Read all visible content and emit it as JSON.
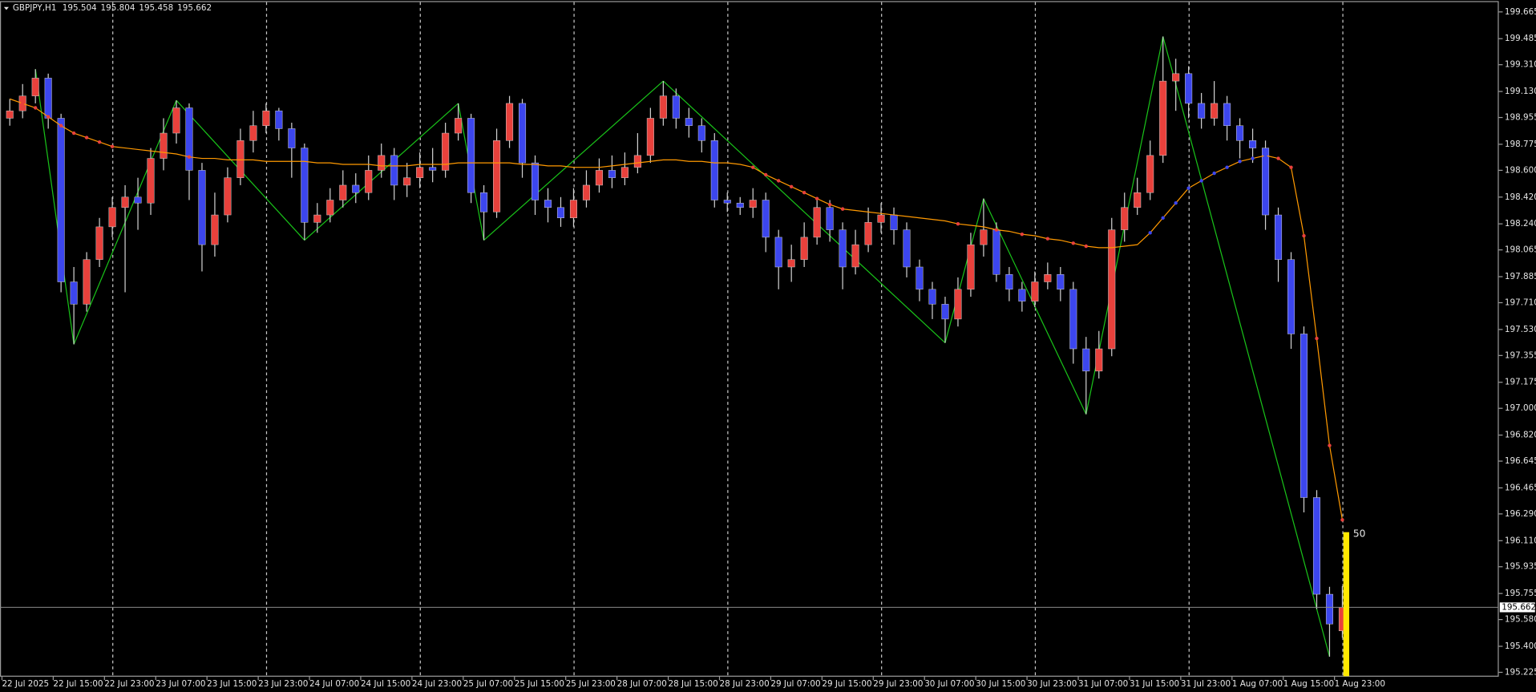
{
  "chart_data": {
    "type": "candlestick",
    "title": "GBPJPY,H1",
    "categories": [
      "22 Jul 2025",
      null,
      null,
      null,
      "22 Jul 15:00",
      null,
      null,
      null,
      "22 Jul 23:00",
      null,
      null,
      null,
      "23 Jul 07:00",
      null,
      null,
      null,
      "23 Jul 15:00",
      null,
      null,
      null,
      "23 Jul 23:00",
      null,
      null,
      null,
      "24 Jul 07:00",
      null,
      null,
      null,
      "24 Jul 15:00",
      null,
      null,
      null,
      "24 Jul 23:00",
      null,
      null,
      null,
      "25 Jul 07:00",
      null,
      null,
      null,
      "25 Jul 15:00",
      null,
      null,
      null,
      "25 Jul 23:00",
      null,
      null,
      null,
      "28 Jul 07:00",
      null,
      null,
      null,
      "28 Jul 15:00",
      null,
      null,
      null,
      "28 Jul 23:00",
      null,
      null,
      null,
      "29 Jul 07:00",
      null,
      null,
      null,
      "29 Jul 15:00",
      null,
      null,
      null,
      "29 Jul 23:00",
      null,
      null,
      null,
      "30 Jul 07:00",
      null,
      null,
      null,
      "30 Jul 15:00",
      null,
      null,
      null,
      "30 Jul 23:00",
      null,
      null,
      null,
      "31 Jul 07:00",
      null,
      null,
      null,
      "31 Jul 15:00",
      null,
      null,
      null,
      "31 Jul 23:00",
      null,
      null,
      null,
      "1 Aug 07:00",
      null,
      null,
      null,
      "1 Aug 15:00",
      null,
      null,
      null,
      "1 Aug 23:00"
    ],
    "open": [
      198.95,
      199.0,
      199.1,
      199.22,
      198.95,
      197.85,
      197.7,
      198.0,
      198.22,
      198.35,
      198.42,
      198.38,
      198.68,
      198.85,
      199.02,
      198.6,
      198.1,
      198.3,
      198.55,
      198.8,
      198.9,
      199.0,
      198.88,
      198.75,
      198.25,
      198.3,
      198.4,
      198.5,
      198.45,
      198.6,
      198.7,
      198.5,
      198.55,
      198.62,
      198.6,
      198.85,
      198.95,
      198.45,
      198.32,
      198.8,
      199.05,
      198.65,
      198.4,
      198.35,
      198.28,
      198.4,
      198.5,
      198.6,
      198.55,
      198.62,
      198.7,
      198.95,
      199.1,
      198.95,
      198.9,
      198.8,
      198.4,
      198.38,
      198.35,
      198.4,
      198.15,
      197.95,
      198.0,
      198.15,
      198.35,
      198.2,
      197.95,
      198.1,
      198.25,
      198.3,
      198.2,
      197.95,
      197.8,
      197.7,
      197.6,
      197.8,
      198.1,
      198.2,
      197.9,
      197.8,
      197.72,
      197.85,
      197.9,
      197.8,
      197.4,
      197.25,
      197.4,
      198.2,
      198.35,
      198.45,
      198.7,
      199.2,
      199.25,
      199.05,
      198.95,
      199.05,
      198.9,
      198.8,
      198.75,
      198.3,
      198.0,
      197.5,
      196.4,
      195.75,
      195.504
    ],
    "high": [
      199.08,
      199.18,
      199.28,
      199.25,
      198.98,
      197.95,
      198.05,
      198.28,
      198.42,
      198.5,
      198.55,
      198.75,
      198.95,
      199.07,
      199.05,
      198.65,
      198.45,
      198.62,
      198.88,
      199.0,
      199.05,
      199.02,
      198.92,
      198.78,
      198.38,
      198.48,
      198.6,
      198.58,
      198.7,
      198.78,
      198.75,
      198.65,
      198.72,
      198.75,
      198.92,
      199.05,
      198.98,
      198.5,
      198.88,
      199.1,
      199.08,
      198.7,
      198.48,
      198.42,
      198.48,
      198.6,
      198.68,
      198.7,
      198.72,
      198.85,
      199.02,
      199.2,
      199.15,
      199.02,
      198.95,
      198.85,
      198.45,
      198.42,
      198.48,
      198.45,
      198.2,
      198.1,
      198.25,
      198.42,
      198.4,
      198.25,
      198.2,
      198.35,
      198.38,
      198.35,
      198.25,
      198.0,
      197.85,
      197.75,
      197.88,
      198.18,
      198.41,
      198.25,
      197.95,
      197.85,
      197.92,
      197.98,
      197.95,
      197.85,
      197.48,
      197.52,
      198.28,
      198.45,
      198.55,
      198.8,
      199.5,
      199.35,
      199.3,
      199.12,
      199.2,
      199.1,
      198.95,
      198.88,
      198.8,
      198.35,
      198.05,
      197.55,
      196.45,
      195.8,
      195.804
    ],
    "low": [
      198.9,
      198.95,
      199.05,
      198.88,
      197.78,
      197.43,
      197.65,
      197.95,
      198.15,
      197.78,
      198.2,
      198.3,
      198.6,
      198.78,
      198.4,
      197.92,
      198.02,
      198.25,
      198.5,
      198.72,
      198.85,
      198.8,
      198.55,
      198.13,
      198.18,
      198.25,
      198.35,
      198.38,
      198.4,
      198.55,
      198.4,
      198.42,
      198.48,
      198.52,
      198.55,
      198.8,
      198.38,
      198.13,
      198.28,
      198.75,
      198.55,
      198.3,
      198.25,
      198.22,
      198.22,
      198.35,
      198.45,
      198.48,
      198.5,
      198.58,
      198.65,
      198.9,
      198.88,
      198.82,
      198.72,
      198.35,
      198.32,
      198.3,
      198.28,
      198.05,
      197.8,
      197.85,
      197.95,
      198.1,
      198.12,
      197.8,
      197.9,
      198.05,
      198.18,
      198.1,
      197.88,
      197.72,
      197.6,
      197.44,
      197.55,
      197.75,
      198.02,
      197.85,
      197.72,
      197.65,
      197.68,
      197.8,
      197.72,
      197.3,
      196.96,
      197.2,
      197.35,
      198.12,
      198.3,
      198.4,
      198.65,
      199.0,
      198.95,
      198.88,
      198.9,
      198.8,
      198.68,
      198.65,
      198.2,
      197.85,
      197.4,
      196.3,
      195.65,
      195.33,
      195.458
    ],
    "close": [
      199.0,
      199.1,
      199.22,
      198.95,
      197.85,
      197.7,
      198.0,
      198.22,
      198.35,
      198.42,
      198.38,
      198.68,
      198.85,
      199.02,
      198.6,
      198.1,
      198.3,
      198.55,
      198.8,
      198.9,
      199.0,
      198.88,
      198.75,
      198.25,
      198.3,
      198.4,
      198.5,
      198.45,
      198.6,
      198.7,
      198.5,
      198.55,
      198.62,
      198.6,
      198.85,
      198.95,
      198.45,
      198.32,
      198.8,
      199.05,
      198.65,
      198.4,
      198.35,
      198.28,
      198.4,
      198.5,
      198.6,
      198.55,
      198.62,
      198.7,
      198.95,
      199.1,
      198.95,
      198.9,
      198.8,
      198.4,
      198.38,
      198.35,
      198.4,
      198.15,
      197.95,
      198.0,
      198.15,
      198.35,
      198.2,
      197.95,
      198.1,
      198.25,
      198.3,
      198.2,
      197.95,
      197.8,
      197.7,
      197.6,
      197.8,
      198.1,
      198.2,
      197.9,
      197.8,
      197.72,
      197.85,
      197.9,
      197.8,
      197.4,
      197.25,
      197.4,
      198.2,
      198.35,
      198.45,
      198.7,
      199.2,
      199.25,
      199.05,
      198.95,
      199.05,
      198.9,
      198.8,
      198.75,
      198.3,
      198.0,
      197.5,
      196.4,
      195.75,
      195.55,
      195.662
    ],
    "up_color": "#e8413c",
    "down_color": "#3c46ee",
    "wick_color": "#d0d0d0",
    "moving_average": {
      "color": "#ff9900",
      "values": [
        199.08,
        199.05,
        199.02,
        198.96,
        198.9,
        198.85,
        198.82,
        198.79,
        198.76,
        198.75,
        198.74,
        198.73,
        198.72,
        198.71,
        198.69,
        198.68,
        198.68,
        198.67,
        198.67,
        198.67,
        198.66,
        198.66,
        198.66,
        198.66,
        198.65,
        198.65,
        198.64,
        198.64,
        198.64,
        198.63,
        198.63,
        198.63,
        198.64,
        198.64,
        198.64,
        198.65,
        198.65,
        198.65,
        198.65,
        198.65,
        198.64,
        198.64,
        198.63,
        198.63,
        198.62,
        198.62,
        198.62,
        198.63,
        198.64,
        198.65,
        198.66,
        198.67,
        198.67,
        198.66,
        198.66,
        198.65,
        198.65,
        198.64,
        198.62,
        198.57,
        198.53,
        198.49,
        198.45,
        198.41,
        198.37,
        198.34,
        198.33,
        198.32,
        198.31,
        198.3,
        198.29,
        198.28,
        198.27,
        198.26,
        198.24,
        198.23,
        198.22,
        198.2,
        198.19,
        198.17,
        198.16,
        198.14,
        198.13,
        198.11,
        198.09,
        198.08,
        198.08,
        198.09,
        198.1,
        198.18,
        198.28,
        198.38,
        198.48,
        198.53,
        198.58,
        198.62,
        198.66,
        198.68,
        198.7,
        198.68,
        198.62,
        198.16,
        197.47,
        196.75,
        196.25
      ]
    },
    "zigzag": {
      "color": "#19c219",
      "values": [
        null,
        null,
        199.28,
        null,
        null,
        197.43,
        null,
        null,
        null,
        null,
        null,
        null,
        null,
        199.07,
        null,
        null,
        null,
        null,
        null,
        null,
        null,
        null,
        null,
        198.13,
        null,
        null,
        null,
        null,
        null,
        null,
        null,
        null,
        null,
        null,
        null,
        199.05,
        null,
        198.13,
        null,
        null,
        null,
        null,
        null,
        null,
        null,
        null,
        null,
        null,
        null,
        null,
        null,
        199.2,
        null,
        null,
        null,
        null,
        null,
        null,
        null,
        null,
        null,
        null,
        null,
        null,
        null,
        null,
        null,
        null,
        null,
        null,
        null,
        null,
        null,
        197.44,
        null,
        null,
        198.41,
        null,
        null,
        null,
        null,
        null,
        null,
        null,
        196.96,
        null,
        null,
        null,
        null,
        null,
        199.5,
        null,
        null,
        null,
        null,
        null,
        null,
        null,
        null,
        null,
        null,
        null,
        null,
        195.33,
        null
      ]
    },
    "gauge": {
      "value": 50,
      "color": "#ffe800"
    },
    "price_line_color": "#8a8a8a",
    "ylim": [
      195.199,
      199.731
    ],
    "yticks": [
      199.665,
      199.485,
      {
        "value": 199.31,
        "label": "199.310"
      },
      {
        "value": 199.13,
        "label": "199.130"
      },
      198.955,
      198.775,
      {
        "value": 198.6,
        "label": "198.600"
      },
      {
        "value": 198.42,
        "label": "198.420"
      },
      {
        "value": 198.24,
        "label": "198.240"
      },
      198.065,
      197.885,
      {
        "value": 197.71,
        "label": "197.710"
      },
      {
        "value": 197.53,
        "label": "197.530"
      },
      197.355,
      197.175,
      {
        "value": 197,
        "label": "197.000"
      },
      {
        "value": 196.82,
        "label": "196.820"
      },
      196.645,
      196.465,
      {
        "value": 196.29,
        "label": "196.290"
      },
      {
        "value": 196.11,
        "label": "196.110"
      },
      195.935,
      195.755,
      {
        "value": 195.58,
        "label": "195.580"
      },
      {
        "value": 195.4,
        "label": "195.400"
      },
      195.225
    ],
    "grid": true
  }
}
